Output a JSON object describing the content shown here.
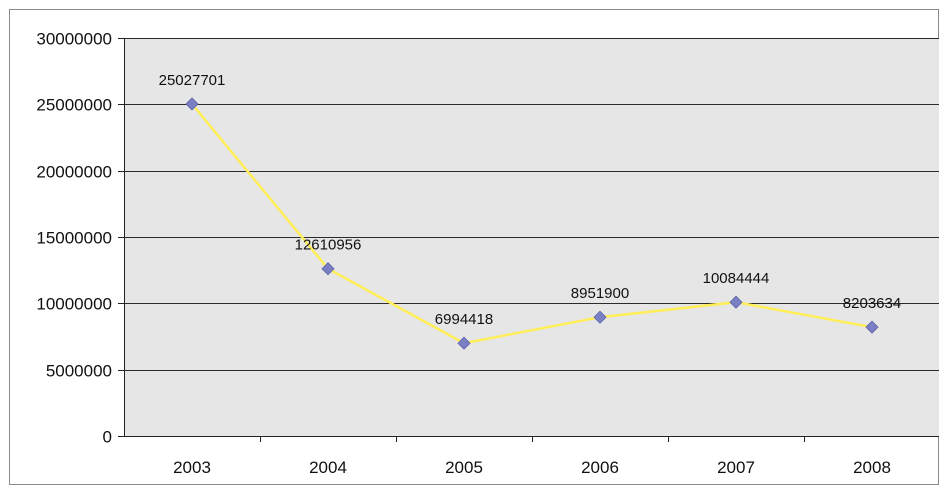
{
  "chart_data": {
    "type": "line",
    "title": "",
    "xlabel": "",
    "ylabel": "",
    "categories": [
      "2003",
      "2004",
      "2005",
      "2006",
      "2007",
      "2008"
    ],
    "series": [
      {
        "values": [
          25027701,
          12610956,
          6994418,
          8951900,
          10084444,
          8203634
        ]
      }
    ],
    "data_labels": [
      "25027701",
      "12610956",
      "6994418",
      "8951900",
      "10084444",
      "8203634"
    ],
    "ylim": [
      0,
      30000000
    ],
    "yticks": [
      0,
      5000000,
      10000000,
      15000000,
      20000000,
      25000000,
      30000000
    ],
    "ytick_labels": [
      "0",
      "5000000",
      "10000000",
      "15000000",
      "20000000",
      "25000000",
      "30000000"
    ],
    "grid": true,
    "legend": "none",
    "colors": {
      "line": "#ffee55",
      "marker": "#7b7fc4",
      "plot_background": "#e6e6e6",
      "gridline": "#2b2b2b"
    }
  }
}
